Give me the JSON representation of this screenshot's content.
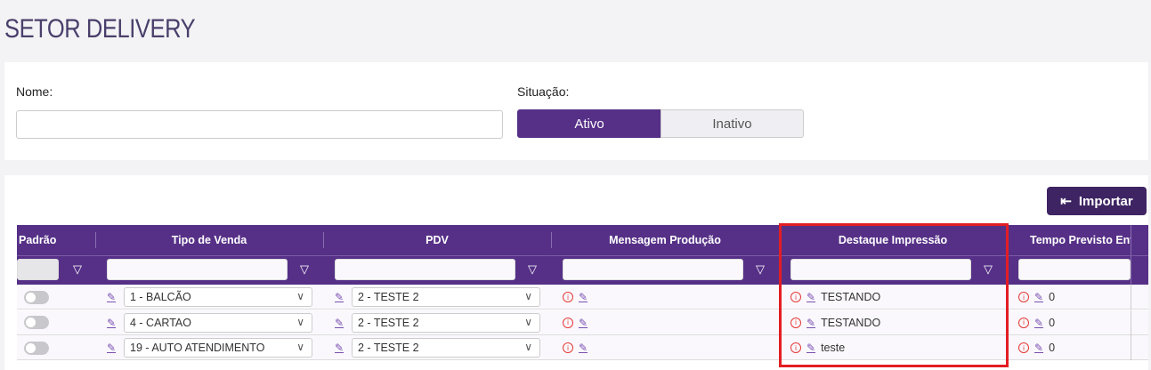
{
  "page": {
    "title": "SETOR DELIVERY"
  },
  "form": {
    "nome_label": "Nome:",
    "nome_value": "",
    "situacao_label": "Situação:",
    "situacao_options": [
      "Ativo",
      "Inativo"
    ],
    "situacao_selected": "Ativo"
  },
  "toolbar": {
    "import_label": "Importar"
  },
  "table": {
    "columns": [
      "Padrão",
      "Tipo de Venda",
      "PDV",
      "Mensagem Produção",
      "Destaque Impressão",
      "Tempo Previsto Entre"
    ],
    "rows": [
      {
        "padrao": false,
        "tipo_venda": "1 - BALCÃO",
        "pdv": "2 - TESTE 2",
        "mensagem": "",
        "destaque": "TESTANDO",
        "tempo": "0"
      },
      {
        "padrao": false,
        "tipo_venda": "4 - CARTAO",
        "pdv": "2 - TESTE 2",
        "mensagem": "",
        "destaque": "TESTANDO",
        "tempo": "0"
      },
      {
        "padrao": false,
        "tipo_venda": "19 - AUTO ATENDIMENTO",
        "pdv": "2 - TESTE 2",
        "mensagem": "",
        "destaque": "teste",
        "tempo": "0"
      }
    ]
  },
  "colors": {
    "accent": "#563087",
    "button": "#3e2463",
    "highlight": "#e31e24",
    "info": "#e53935"
  }
}
